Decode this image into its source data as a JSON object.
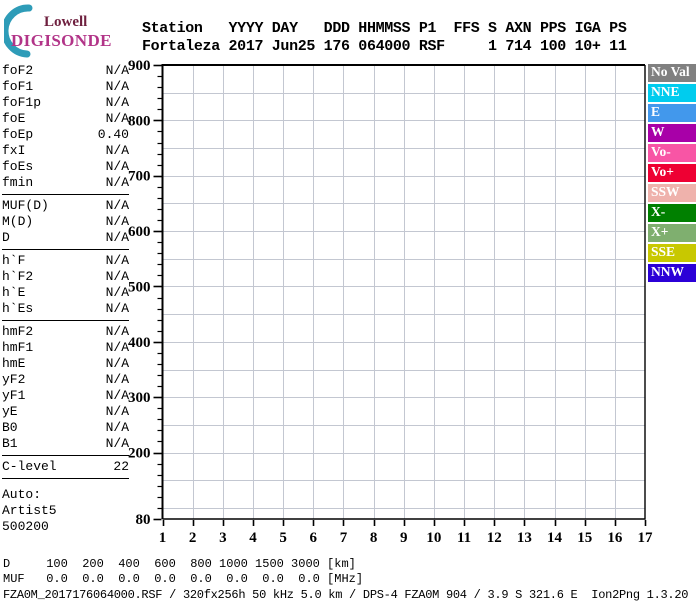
{
  "logo": {
    "name": "Lowell",
    "product": "DIGISONDE",
    "arc_color": "#2E9CB8",
    "name_color": "#6E1F3E",
    "product_color": "#B23488"
  },
  "header": {
    "line1": "Station   YYYY DAY   DDD HHMMSS P1  FFS S AXN PPS IGA PS",
    "line2": "Fortaleza 2017 Jun25 176 064000 RSF     1 714 100 10+ 11"
  },
  "sidebar": {
    "groups": [
      {
        "rows": [
          {
            "label": "foF2",
            "value": "N/A"
          },
          {
            "label": "foF1",
            "value": "N/A"
          },
          {
            "label": "foF1p",
            "value": "N/A"
          },
          {
            "label": "foE",
            "value": "N/A"
          },
          {
            "label": "foEp",
            "value": "0.40"
          },
          {
            "label": "fxI",
            "value": "N/A"
          },
          {
            "label": "foEs",
            "value": "N/A"
          },
          {
            "label": "fmin",
            "value": "N/A"
          }
        ]
      },
      {
        "rows": [
          {
            "label": "MUF(D)",
            "value": "N/A"
          },
          {
            "label": "M(D)",
            "value": "N/A"
          },
          {
            "label": "D",
            "value": "N/A"
          }
        ]
      },
      {
        "rows": [
          {
            "label": "h`F",
            "value": "N/A"
          },
          {
            "label": "h`F2",
            "value": "N/A"
          },
          {
            "label": "h`E",
            "value": "N/A"
          },
          {
            "label": "h`Es",
            "value": "N/A"
          }
        ]
      },
      {
        "rows": [
          {
            "label": "hmF2",
            "value": "N/A"
          },
          {
            "label": "hmF1",
            "value": "N/A"
          },
          {
            "label": "hmE",
            "value": "N/A"
          },
          {
            "label": "yF2",
            "value": "N/A"
          },
          {
            "label": "yF1",
            "value": "N/A"
          },
          {
            "label": "yE",
            "value": "N/A"
          },
          {
            "label": "B0",
            "value": "N/A"
          },
          {
            "label": "B1",
            "value": "N/A"
          }
        ]
      },
      {
        "rows": [
          {
            "label": "C-level",
            "value": "22"
          }
        ]
      }
    ],
    "auto_lines": [
      "Auto:",
      "Artist5",
      "500200"
    ]
  },
  "legend": {
    "items": [
      {
        "label": "No Val",
        "color": "#808080"
      },
      {
        "label": "NNE",
        "color": "#00CCEE"
      },
      {
        "label": "E",
        "color": "#4298EC"
      },
      {
        "label": "W",
        "color": "#A800A8"
      },
      {
        "label": "Vo-",
        "color": "#F855A5"
      },
      {
        "label": "Vo+",
        "color": "#EE0033"
      },
      {
        "label": "SSW",
        "color": "#EFB2AC"
      },
      {
        "label": "X-",
        "color": "#008000"
      },
      {
        "label": "X+",
        "color": "#7FAF6F"
      },
      {
        "label": "SSE",
        "color": "#C8C800"
      },
      {
        "label": "NNW",
        "color": "#2B00D7"
      }
    ]
  },
  "muf_table": {
    "d_label": "D",
    "d_values": [
      "100",
      "200",
      "400",
      "600",
      "800",
      "1000",
      "1500",
      "3000"
    ],
    "d_unit": "[km]",
    "muf_label": "MUF",
    "muf_values": [
      "0.0",
      "0.0",
      "0.0",
      "0.0",
      "0.0",
      "0.0",
      "0.0",
      "0.0"
    ],
    "muf_unit": "[MHz]"
  },
  "footer": {
    "info": "FZA0M_2017176064000.RSF / 320fx256h 50 kHz 5.0 km / DPS-4 FZA0M 904 / 3.9 S 321.6 E  Ion2Png 1.3.20"
  },
  "chart_data": {
    "type": "scatter",
    "title": "",
    "x_unit": "[MHz]",
    "y_unit": "[km]",
    "xlim": [
      1,
      17
    ],
    "ylim": [
      80,
      900
    ],
    "x_ticks": [
      1,
      2,
      3,
      4,
      5,
      6,
      7,
      8,
      9,
      10,
      11,
      12,
      13,
      14,
      15,
      16,
      17
    ],
    "y_tick_labels": [
      900,
      800,
      700,
      600,
      500,
      400,
      300,
      200,
      80
    ],
    "y_minor_step": 20,
    "grid": {
      "x_step": 1,
      "y_step": 50,
      "color": "#C3C7D1"
    },
    "frame_color": "#000000",
    "series": []
  }
}
